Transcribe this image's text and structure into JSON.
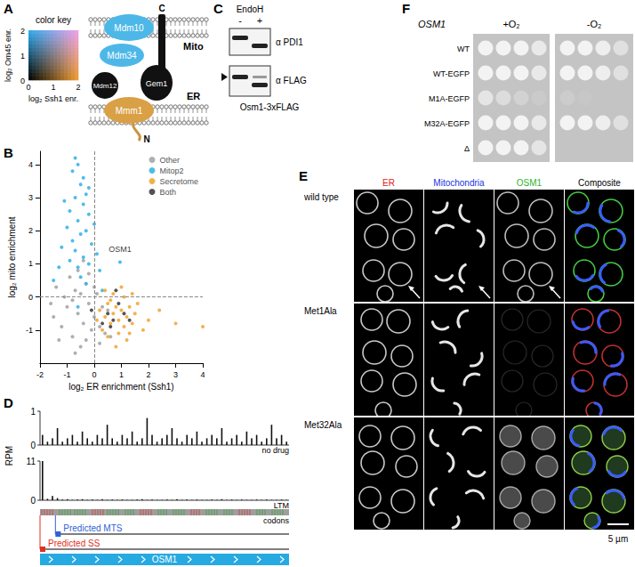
{
  "chart_data": {
    "panel_label": "B",
    "type": "scatter",
    "xlabel": "log₂ ER enrichment (Ssh1)",
    "ylabel": "log₂ mito enrichment",
    "xlim": [
      -2,
      4
    ],
    "xticks": [
      -2,
      -1,
      0,
      1,
      2,
      3,
      4
    ],
    "ylim": [
      -2,
      4.4
    ],
    "yticks": [
      -1,
      0,
      1,
      2,
      3,
      4
    ],
    "grid": false,
    "legend": "top-right",
    "marker": "circle",
    "reference_lines": {
      "x": [
        0
      ],
      "y": [
        0
      ]
    },
    "annotations": [
      {
        "text": "OSM1",
        "x": 0.95,
        "y": 1.05
      }
    ],
    "series": [
      {
        "name": "Other",
        "color": "#a6a6a6",
        "values": [
          [
            -1.5,
            -0.6
          ],
          [
            -1.2,
            -0.9
          ],
          [
            -1.0,
            -0.3
          ],
          [
            -0.8,
            -1.2
          ],
          [
            -0.7,
            0.2
          ],
          [
            -0.6,
            -0.5
          ],
          [
            -0.5,
            -1.5
          ],
          [
            -0.4,
            -0.8
          ],
          [
            -0.3,
            0.4
          ],
          [
            -0.2,
            -0.2
          ],
          [
            -0.1,
            -1.0
          ],
          [
            0.0,
            -0.6
          ],
          [
            0.1,
            0.1
          ],
          [
            0.2,
            -0.9
          ],
          [
            0.3,
            -0.3
          ],
          [
            -0.9,
            0.6
          ],
          [
            -1.1,
            0.0
          ],
          [
            -1.3,
            -1.3
          ],
          [
            -0.6,
            0.8
          ],
          [
            -0.4,
            1.1
          ],
          [
            -0.2,
            0.7
          ],
          [
            0.4,
            -1.1
          ],
          [
            0.5,
            -0.4
          ],
          [
            -1.6,
            -0.2
          ],
          [
            -0.7,
            -1.7
          ],
          [
            -0.3,
            -1.3
          ],
          [
            0.2,
            -1.4
          ],
          [
            -1.4,
            0.3
          ],
          [
            -0.8,
            -0.1
          ],
          [
            0.6,
            -1.2
          ],
          [
            -0.5,
            0.1
          ],
          [
            0.0,
            0.3
          ]
        ]
      },
      {
        "name": "Mitop2",
        "color": "#3cb4e8",
        "values": [
          [
            -0.8,
            3.8
          ],
          [
            -0.6,
            4.0
          ],
          [
            -0.5,
            3.4
          ],
          [
            -0.7,
            3.0
          ],
          [
            -0.4,
            2.8
          ],
          [
            -0.9,
            2.6
          ],
          [
            -0.3,
            3.1
          ],
          [
            -0.6,
            2.3
          ],
          [
            -0.2,
            2.5
          ],
          [
            -1.0,
            2.1
          ],
          [
            -0.5,
            1.9
          ],
          [
            -0.8,
            1.7
          ],
          [
            -0.3,
            2.0
          ],
          [
            -0.1,
            1.6
          ],
          [
            -0.7,
            1.4
          ],
          [
            -0.4,
            1.2
          ],
          [
            -1.2,
            1.5
          ],
          [
            -0.6,
            0.9
          ],
          [
            -0.2,
            1.0
          ],
          [
            -0.9,
            1.1
          ],
          [
            -0.5,
            0.6
          ],
          [
            0.1,
            1.3
          ],
          [
            0.2,
            0.8
          ],
          [
            -1.3,
            0.9
          ],
          [
            -0.4,
            3.6
          ],
          [
            -0.7,
            4.2
          ],
          [
            -0.2,
            3.3
          ],
          [
            -1.1,
            2.9
          ],
          [
            0.0,
            2.2
          ],
          [
            -0.3,
            0.4
          ],
          [
            0.95,
            1.05
          ],
          [
            -0.6,
            -0.3
          ],
          [
            0.3,
            0.2
          ],
          [
            -1.5,
            0.5
          ]
        ]
      },
      {
        "name": "Secretome",
        "color": "#f2a93b",
        "values": [
          [
            0.2,
            -0.4
          ],
          [
            0.4,
            -0.6
          ],
          [
            0.5,
            -0.2
          ],
          [
            0.6,
            -0.8
          ],
          [
            0.7,
            -0.5
          ],
          [
            0.8,
            -0.3
          ],
          [
            0.9,
            -0.7
          ],
          [
            1.0,
            -0.4
          ],
          [
            1.1,
            -0.9
          ],
          [
            1.2,
            -0.6
          ],
          [
            1.3,
            -0.3
          ],
          [
            1.4,
            -0.8
          ],
          [
            1.5,
            -0.5
          ],
          [
            0.3,
            -1.0
          ],
          [
            0.5,
            -1.2
          ],
          [
            0.9,
            -1.1
          ],
          [
            1.1,
            0.0
          ],
          [
            0.7,
            0.1
          ],
          [
            1.6,
            -0.2
          ],
          [
            1.2,
            -1.3
          ],
          [
            0.8,
            -1.5
          ],
          [
            0.4,
            0.2
          ],
          [
            1.0,
            0.3
          ],
          [
            0.6,
            -0.1
          ],
          [
            1.4,
            0.1
          ],
          [
            2.0,
            -0.7
          ],
          [
            2.4,
            -0.4
          ],
          [
            3.0,
            -0.8
          ],
          [
            4.0,
            -0.9
          ],
          [
            1.8,
            -1.0
          ],
          [
            0.1,
            -0.7
          ],
          [
            1.3,
            -1.1
          ]
        ]
      },
      {
        "name": "Both",
        "color": "#404040",
        "values": [
          [
            0.5,
            -0.5
          ],
          [
            0.7,
            -0.7
          ],
          [
            0.9,
            -0.2
          ],
          [
            1.1,
            -0.5
          ],
          [
            0.6,
            -0.9
          ],
          [
            1.3,
            -0.7
          ],
          [
            0.3,
            -0.8
          ],
          [
            0.8,
            0.2
          ],
          [
            -0.1,
            -0.4
          ]
        ]
      }
    ]
  },
  "panels": {
    "A": {
      "label": "A",
      "color_key": {
        "title": "color key",
        "x_label": "log₂ Ssh1 enr.",
        "y_label": "log₂ Om45 enr.",
        "x_ticks": [
          0,
          1,
          2
        ],
        "y_ticks": [
          0,
          1,
          2
        ]
      },
      "diagram": {
        "proteins": {
          "mdm10": "Mdm10",
          "mdm34": "Mdm34",
          "mdm12": "Mdm12",
          "gem1": "Gem1",
          "mmm1": "Mmm1"
        },
        "membranes": {
          "mito": "Mito",
          "er": "ER"
        },
        "termini": {
          "c": "C",
          "n": "N"
        }
      }
    },
    "C": {
      "label": "C",
      "treatment": "EndoH",
      "lanes": [
        "-",
        "+"
      ],
      "blots": [
        "α PDI1",
        "α FLAG"
      ],
      "caption": "Osm1-3xFLAG"
    },
    "D": {
      "label": "D",
      "y_label": "RPM",
      "tracks": [
        {
          "name": "no drug",
          "ylim": [
            0,
            1
          ],
          "yticks": [
            0,
            1
          ],
          "values": [
            0.3,
            0.1,
            0.2,
            0.5,
            0.1,
            0.2,
            0.3,
            0.1,
            0.4,
            0.2,
            0.1,
            0.3,
            0.2,
            0.6,
            0.2,
            0.1,
            0.3,
            0.2,
            0.4,
            0.1,
            0.2,
            0.8,
            0.3,
            0.1,
            0.2,
            0.3,
            0.5,
            0.2,
            0.1,
            0.3,
            0.2,
            0.4,
            0.1,
            0.2,
            0.3,
            0.2,
            0.5,
            0.1,
            0.2,
            0.3,
            0.1,
            0.4,
            0.2,
            0.3,
            0.1,
            0.2,
            0.6,
            0.2,
            0.3,
            0.1
          ]
        },
        {
          "name": "LTM",
          "ylim": [
            0,
            11
          ],
          "yticks": [
            0,
            11
          ],
          "values": [
            11,
            0.4,
            1.2,
            0.6,
            0.2,
            0.3,
            0.1,
            0.2,
            0.3,
            0.1,
            0.2,
            0.1,
            0.3,
            0.1,
            0.2,
            0.1,
            0.2,
            0.1,
            0.1,
            0.2,
            0.3,
            0.1,
            0.2,
            0.1,
            0.1,
            0.2,
            0.1,
            0.3,
            0.1,
            0.2,
            0.1,
            0.2,
            0.1,
            0.1,
            0.2,
            0.1,
            0.3,
            0.1,
            0.2,
            0.1,
            0.2,
            0.1,
            0.1,
            0.2,
            0.1,
            0.2,
            0.1,
            0.1,
            0.2,
            0.1
          ]
        }
      ],
      "codons": "codons",
      "gene_length": 501,
      "features": [
        {
          "text": "Predicted MTS",
          "start": 32,
          "color": "#2f62d8"
        },
        {
          "text": "Predicted SS",
          "start": 1,
          "color": "#e0301e"
        }
      ],
      "gene": "OSM1"
    },
    "E": {
      "label": "E",
      "columns": [
        {
          "text": "ER",
          "color": "#e02020"
        },
        {
          "text": "Mitochondria",
          "color": "#2233dd"
        },
        {
          "text": "OSM1",
          "color": "#2fb52f"
        },
        {
          "text": "Composite",
          "color": "#000000"
        }
      ],
      "rows": [
        "wild type",
        "Met1Ala",
        "Met32Ala"
      ],
      "scale_bar": "5 µm"
    },
    "F": {
      "label": "F",
      "gene": "OSM1",
      "conditions": [
        "+O₂",
        "-O₂"
      ],
      "strains": [
        "WT",
        "WT-EGFP",
        "M1A-EGFP",
        "M32A-EGFP",
        "Δ"
      ]
    }
  }
}
